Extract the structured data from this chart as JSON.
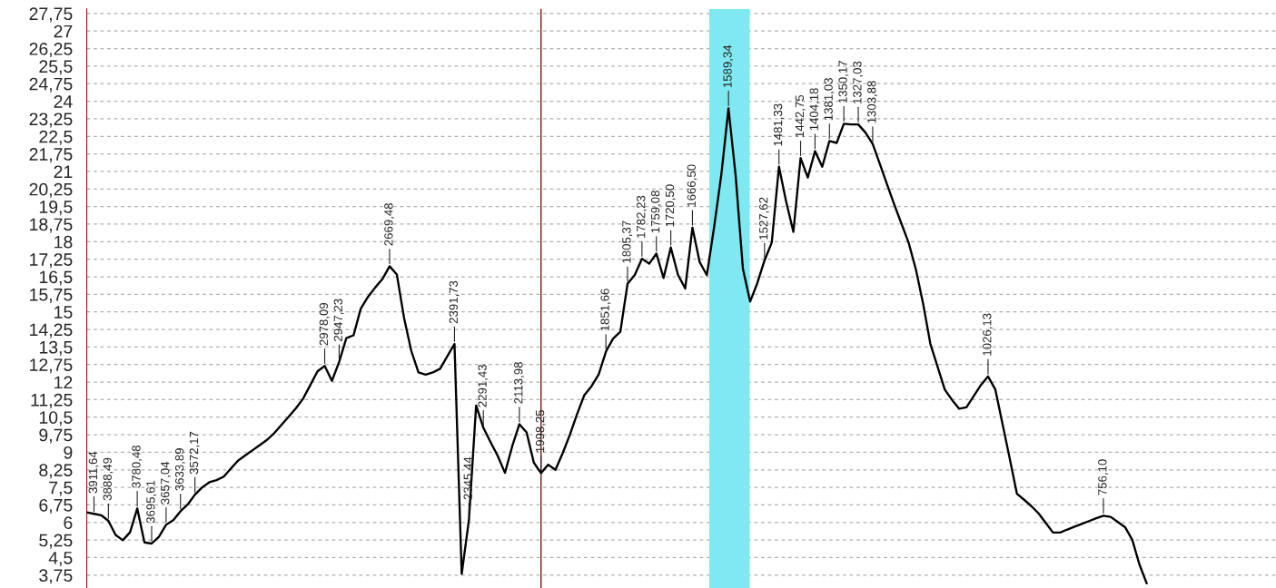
{
  "chart_data": {
    "type": "line",
    "categories": [
      null,
      "3911,64",
      null,
      "3888,49",
      null,
      null,
      null,
      "3780,48",
      null,
      "3695,61",
      null,
      "3657,04",
      null,
      "3633,89",
      null,
      "3572,17",
      null,
      null,
      null,
      null,
      null,
      null,
      null,
      null,
      null,
      null,
      null,
      null,
      null,
      null,
      null,
      null,
      null,
      "2978,09",
      null,
      "2947,23",
      null,
      null,
      null,
      null,
      null,
      null,
      "2669,48",
      null,
      null,
      null,
      null,
      null,
      null,
      null,
      null,
      "2391,73",
      null,
      "2345,44",
      null,
      "2291,43",
      null,
      null,
      null,
      null,
      "2113,98",
      null,
      null,
      "1998,25",
      null,
      null,
      null,
      null,
      null,
      null,
      null,
      null,
      "1851,66",
      null,
      null,
      "1805,37",
      null,
      "1782,23",
      null,
      "1759,08",
      null,
      "1720,50",
      null,
      null,
      "1666,50",
      null,
      null,
      null,
      null,
      "1589,34",
      null,
      null,
      null,
      null,
      "1527,62",
      null,
      "1481,33",
      null,
      null,
      "1442,75",
      null,
      "1404,18",
      null,
      "1381,03",
      null,
      "1350,17",
      null,
      "1327,03",
      null,
      "1303,88",
      null,
      null,
      null,
      null,
      null,
      null,
      null,
      null,
      null,
      null,
      null,
      null,
      null,
      null,
      null,
      "1026,13",
      null,
      null,
      null,
      null,
      null,
      null,
      null,
      null,
      null,
      null,
      null,
      null,
      null,
      null,
      null,
      "756,10",
      null,
      null,
      null,
      null,
      null,
      null
    ],
    "series": [
      {
        "color": "#000000",
        "values": [
          6.43,
          6.37,
          6.31,
          6.07,
          5.47,
          5.24,
          5.58,
          6.6,
          5.15,
          5.1,
          5.39,
          5.9,
          6.1,
          6.48,
          6.77,
          7.19,
          7.5,
          7.72,
          7.81,
          7.96,
          8.31,
          8.65,
          8.87,
          9.09,
          9.31,
          9.53,
          9.82,
          10.17,
          10.52,
          10.88,
          11.29,
          11.87,
          12.46,
          12.69,
          12.05,
          12.86,
          13.88,
          14.0,
          15.14,
          15.64,
          16.04,
          16.4,
          16.95,
          16.6,
          14.75,
          13.34,
          12.41,
          12.32,
          12.41,
          12.57,
          13.1,
          13.63,
          3.8,
          6.1,
          11.0,
          10.05,
          9.43,
          8.84,
          8.12,
          9.25,
          10.2,
          9.85,
          8.56,
          8.11,
          8.47,
          8.25,
          8.96,
          9.75,
          10.63,
          11.44,
          11.82,
          12.33,
          13.3,
          13.86,
          14.15,
          16.2,
          16.58,
          17.27,
          17.06,
          17.49,
          16.45,
          17.75,
          16.58,
          16.0,
          18.6,
          17.13,
          16.57,
          18.61,
          20.85,
          23.7,
          20.8,
          16.84,
          15.44,
          16.23,
          17.2,
          17.96,
          21.2,
          19.71,
          18.42,
          21.57,
          20.74,
          21.87,
          21.2,
          22.3,
          22.22,
          23.04,
          23.01,
          23.01,
          22.66,
          22.18,
          21.31,
          20.44,
          19.58,
          18.76,
          17.94,
          16.8,
          15.34,
          13.63,
          12.66,
          11.68,
          11.24,
          10.86,
          10.92,
          11.4,
          11.87,
          12.24,
          11.69,
          10.22,
          8.74,
          7.23,
          6.97,
          6.7,
          6.39,
          5.98,
          5.57,
          5.57,
          5.7,
          5.82,
          5.94,
          6.06,
          6.18,
          6.29,
          6.24,
          6.02,
          5.8,
          5.26,
          4.2,
          3.4
        ]
      }
    ],
    "ylim": [
      3.2,
      27.95
    ],
    "yticks": [
      {
        "value": 3.75,
        "label": "3,75"
      },
      {
        "value": 4.5,
        "label": "4,5"
      },
      {
        "value": 5.25,
        "label": "5,25"
      },
      {
        "value": 6,
        "label": "6"
      },
      {
        "value": 6.75,
        "label": "6,75"
      },
      {
        "value": 7.5,
        "label": "7,5"
      },
      {
        "value": 8.25,
        "label": "8,25"
      },
      {
        "value": 9,
        "label": "9"
      },
      {
        "value": 9.75,
        "label": "9,75"
      },
      {
        "value": 10.5,
        "label": "10,5"
      },
      {
        "value": 11.25,
        "label": "11,25"
      },
      {
        "value": 12,
        "label": "12"
      },
      {
        "value": 12.75,
        "label": "12,75"
      },
      {
        "value": 13.5,
        "label": "13,5"
      },
      {
        "value": 14.25,
        "label": "14,25"
      },
      {
        "value": 15,
        "label": "15"
      },
      {
        "value": 15.75,
        "label": "15,75"
      },
      {
        "value": 16.5,
        "label": "16,5"
      },
      {
        "value": 17.25,
        "label": "17,25"
      },
      {
        "value": 18,
        "label": "18"
      },
      {
        "value": 18.75,
        "label": "18,75"
      },
      {
        "value": 19.5,
        "label": "19,5"
      },
      {
        "value": 20.25,
        "label": "20,25"
      },
      {
        "value": 21,
        "label": "21"
      },
      {
        "value": 21.75,
        "label": "21,75"
      },
      {
        "value": 22.5,
        "label": "22,5"
      },
      {
        "value": 23.25,
        "label": "23,25"
      },
      {
        "value": 24,
        "label": "24"
      },
      {
        "value": 24.75,
        "label": "24,75"
      },
      {
        "value": 25.5,
        "label": "25,5"
      },
      {
        "value": 26.25,
        "label": "26,25"
      },
      {
        "value": 27,
        "label": "27"
      },
      {
        "value": 27.75,
        "label": "27,75"
      }
    ],
    "grid": "y",
    "ref_lines": [
      {
        "axis": "x",
        "value": "1998,25",
        "color": "#6b2020"
      }
    ]
  }
}
